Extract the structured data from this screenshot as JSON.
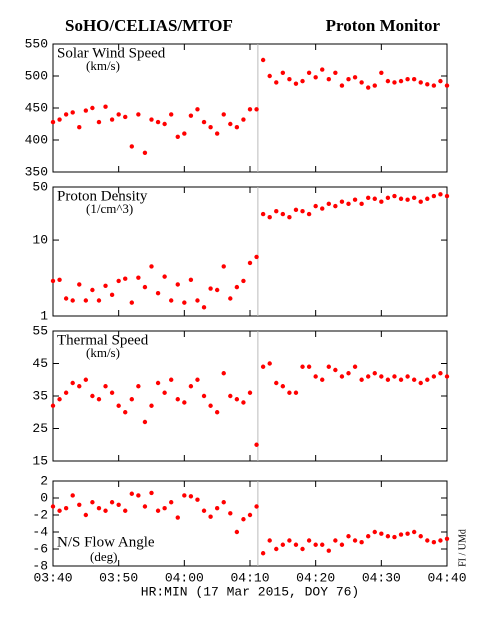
{
  "title_left": "SoHO/CELIAS/MTOF",
  "title_right": "Proton Monitor",
  "x_label": "HR:MIN (17 Mar 2015, DOY 76)",
  "credit": "FI / UMd",
  "xlim": [
    0,
    60
  ],
  "xticks": [
    {
      "value": 0,
      "label": "03:40"
    },
    {
      "value": 10,
      "label": "03:50"
    },
    {
      "value": 20,
      "label": "04:00"
    },
    {
      "value": 30,
      "label": "04:10"
    },
    {
      "value": 40,
      "label": "04:20"
    },
    {
      "value": 50,
      "label": "04:30"
    },
    {
      "value": 60,
      "label": "04:40"
    }
  ],
  "marker_x": 31.2,
  "chart_data": [
    {
      "type": "scatter",
      "label": "Solar Wind Speed",
      "unit": "(km/s)",
      "color": "#ff0000",
      "ylim": [
        350,
        550
      ],
      "yticks": [
        350,
        400,
        450,
        500,
        550
      ],
      "x": [
        0,
        1,
        2,
        3,
        4,
        5,
        6,
        7,
        8,
        9,
        10,
        11,
        12,
        13,
        14,
        15,
        16,
        17,
        18,
        19,
        20,
        21,
        22,
        23,
        24,
        25,
        26,
        27,
        28,
        29,
        30,
        31,
        32,
        33,
        34,
        35,
        36,
        37,
        38,
        39,
        40,
        41,
        42,
        43,
        44,
        45,
        46,
        47,
        48,
        49,
        50,
        51,
        52,
        53,
        54,
        55,
        56,
        57,
        58,
        59,
        60
      ],
      "values": [
        428,
        432,
        440,
        443,
        420,
        446,
        450,
        428,
        452,
        432,
        440,
        436,
        390,
        440,
        380,
        432,
        428,
        425,
        440,
        405,
        410,
        438,
        448,
        428,
        420,
        410,
        440,
        425,
        420,
        432,
        448,
        448,
        525,
        500,
        490,
        505,
        495,
        488,
        492,
        505,
        498,
        510,
        495,
        505,
        485,
        495,
        498,
        490,
        482,
        485,
        505,
        492,
        490,
        492,
        495,
        495,
        490,
        487,
        485,
        492,
        485
      ]
    },
    {
      "type": "scatter",
      "label": "Proton Density",
      "unit": "(1/cm^3)",
      "color": "#ff0000",
      "log": true,
      "ylim": [
        1,
        50
      ],
      "yticks": [
        1,
        10,
        50
      ],
      "x": [
        0,
        1,
        2,
        3,
        4,
        5,
        6,
        7,
        8,
        9,
        10,
        11,
        12,
        13,
        14,
        15,
        16,
        17,
        18,
        19,
        20,
        21,
        22,
        23,
        24,
        25,
        26,
        27,
        28,
        29,
        30,
        31,
        32,
        33,
        34,
        35,
        36,
        37,
        38,
        39,
        40,
        41,
        42,
        43,
        44,
        45,
        46,
        47,
        48,
        49,
        50,
        51,
        52,
        53,
        54,
        55,
        56,
        57,
        58,
        59,
        60
      ],
      "values": [
        2.9,
        3.0,
        1.7,
        1.6,
        2.6,
        1.6,
        2.2,
        1.6,
        2.5,
        1.9,
        2.9,
        3.1,
        1.5,
        3.2,
        2.4,
        4.5,
        2.0,
        3.3,
        1.6,
        2.6,
        1.5,
        3.0,
        1.6,
        1.3,
        2.3,
        2.2,
        4.5,
        1.7,
        2.4,
        2.9,
        5.0,
        6.0,
        22,
        20,
        24,
        22,
        20,
        25,
        24,
        22,
        28,
        26,
        30,
        28,
        32,
        30,
        34,
        30,
        36,
        35,
        32,
        36,
        38,
        35,
        34,
        36,
        32,
        35,
        38,
        40,
        38
      ]
    },
    {
      "type": "scatter",
      "label": "Thermal Speed",
      "unit": "(km/s)",
      "color": "#ff0000",
      "ylim": [
        15,
        55
      ],
      "yticks": [
        15,
        25,
        35,
        45,
        55
      ],
      "x": [
        0,
        1,
        2,
        3,
        4,
        5,
        6,
        7,
        8,
        9,
        10,
        11,
        12,
        13,
        14,
        15,
        16,
        17,
        18,
        19,
        20,
        21,
        22,
        23,
        24,
        25,
        26,
        27,
        28,
        29,
        30,
        31,
        32,
        33,
        34,
        35,
        36,
        37,
        38,
        39,
        40,
        41,
        42,
        43,
        44,
        45,
        46,
        47,
        48,
        49,
        50,
        51,
        52,
        53,
        54,
        55,
        56,
        57,
        58,
        59,
        60
      ],
      "values": [
        32,
        34,
        36,
        39,
        38,
        40,
        35,
        34,
        38,
        36,
        32,
        30,
        34,
        38,
        27,
        32,
        39,
        36,
        40,
        34,
        33,
        38,
        40,
        35,
        32,
        30,
        42,
        35,
        34,
        33,
        36,
        20,
        44,
        45,
        39,
        38,
        36,
        36,
        44,
        44,
        41,
        40,
        44,
        43,
        41,
        42,
        44,
        40,
        41,
        42,
        41,
        40,
        41,
        40,
        41,
        40,
        39,
        40,
        41,
        42,
        41
      ]
    },
    {
      "type": "scatter",
      "label": "N/S Flow Angle",
      "unit": "(deg)",
      "color": "#ff0000",
      "ylim": [
        -8,
        2
      ],
      "yticks": [
        -8,
        -6,
        -4,
        -2,
        0,
        2
      ],
      "x": [
        0,
        1,
        2,
        3,
        4,
        5,
        6,
        7,
        8,
        9,
        10,
        11,
        12,
        13,
        14,
        15,
        16,
        17,
        18,
        19,
        20,
        21,
        22,
        23,
        24,
        25,
        26,
        27,
        28,
        29,
        30,
        31,
        32,
        33,
        34,
        35,
        36,
        37,
        38,
        39,
        40,
        41,
        42,
        43,
        44,
        45,
        46,
        47,
        48,
        49,
        50,
        51,
        52,
        53,
        54,
        55,
        56,
        57,
        58,
        59,
        60
      ],
      "values": [
        -1,
        -1.5,
        -1.2,
        0.3,
        -0.8,
        -2,
        -0.5,
        -1.2,
        -1.5,
        -0.5,
        -0.8,
        -1.5,
        0.5,
        0.3,
        -1,
        0.6,
        -1.5,
        -1.2,
        -0.5,
        -2.3,
        0.3,
        0.2,
        -0.2,
        -1.5,
        -2.2,
        -1.2,
        -0.5,
        -1.8,
        -4,
        -2.5,
        -2,
        -1,
        -6.5,
        -5,
        -6,
        -5.5,
        -5,
        -5.5,
        -6,
        -5,
        -5.5,
        -5.5,
        -6.2,
        -5,
        -5.5,
        -4.5,
        -5,
        -5.2,
        -4.5,
        -4,
        -4.2,
        -4.5,
        -4.6,
        -4.3,
        -4.2,
        -4,
        -4.5,
        -5,
        -5.2,
        -5,
        -4.8
      ]
    }
  ]
}
